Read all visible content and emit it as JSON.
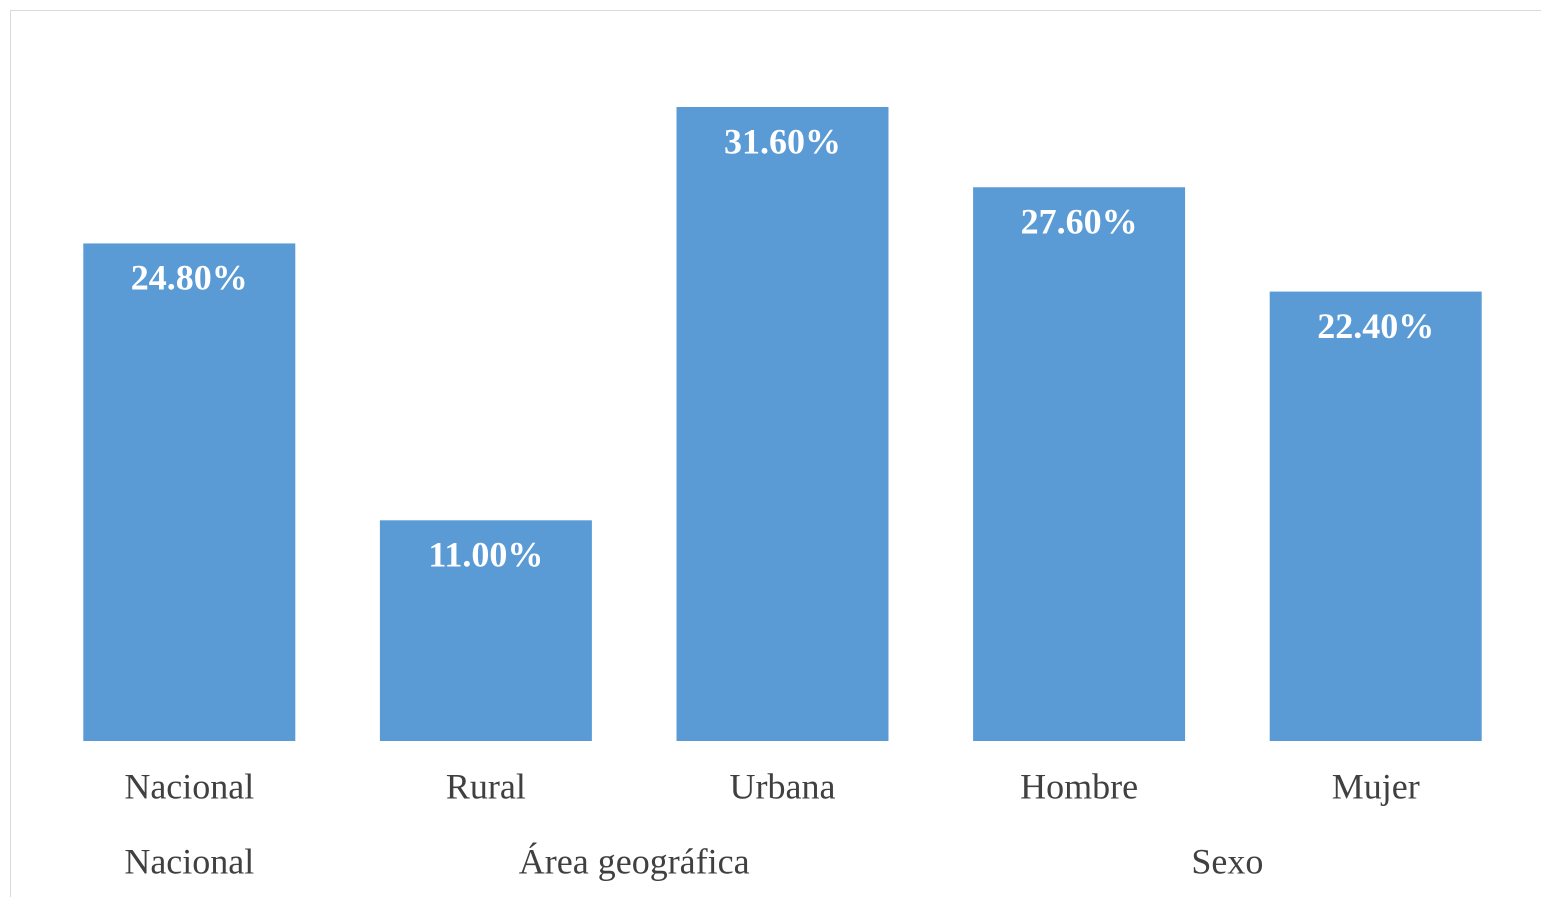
{
  "chart_data": {
    "type": "bar",
    "categories": [
      "Nacional",
      "Rural",
      "Urbana",
      "Hombre",
      "Mujer"
    ],
    "values": [
      24.8,
      11.0,
      31.6,
      27.6,
      22.4
    ],
    "value_labels": [
      "24.80%",
      "11.00%",
      "31.60%",
      "27.60%",
      "22.40%"
    ],
    "groups": [
      {
        "label": "Nacional",
        "count": 1
      },
      {
        "label": "Área geográfica",
        "count": 2
      },
      {
        "label": "Sexo",
        "count": 2
      }
    ],
    "color": "#5b9bd5"
  }
}
